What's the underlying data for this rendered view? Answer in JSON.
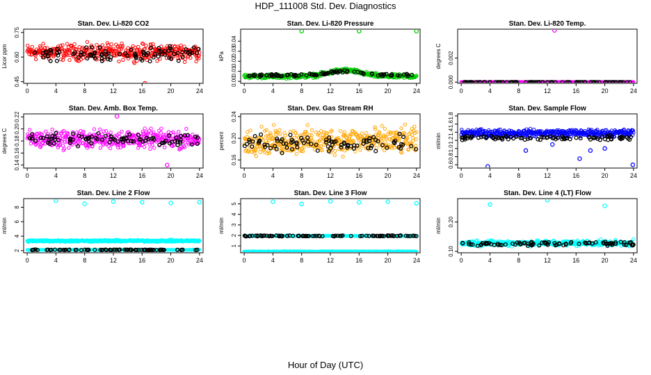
{
  "page": {
    "title": "HDP_111008  Std. Dev. Diagnostics",
    "x_label": "Hour of Day (UTC)"
  },
  "chart_data": [
    {
      "type": "scatter",
      "title": "Stan. Dev. Li-820 CO2",
      "ylabel": "Licor ppm",
      "xlim": [
        -0.5,
        24.5
      ],
      "ylim": [
        0.44,
        0.77
      ],
      "xticks": [
        "0",
        "4",
        "8",
        "12",
        "16",
        "20",
        "24"
      ],
      "yticks": [
        "0.45",
        "0.60",
        "0.75"
      ],
      "yticks_at": [
        0.45,
        0.6,
        0.75
      ],
      "series": [
        {
          "color": "#ff0000",
          "y_center": 0.63,
          "y_spread": 0.07,
          "outliers": [
            [
              16.4,
              0.44
            ]
          ]
        },
        {
          "color": "#000000",
          "y_center": 0.62,
          "y_spread": 0.06,
          "outliers": []
        }
      ]
    },
    {
      "type": "scatter",
      "title": "Stan. Dev. Li-820 Pressure",
      "ylabel": "kPa",
      "xlim": [
        -0.5,
        24.5
      ],
      "ylim": [
        -0.002,
        0.052
      ],
      "xticks": [
        "0",
        "4",
        "8",
        "12",
        "16",
        "20",
        "24"
      ],
      "yticks": [
        "0.00",
        "0.01",
        "0.02",
        "0.03",
        "0.04"
      ],
      "yticks_at": [
        0.0,
        0.01,
        0.02,
        0.03,
        0.04
      ],
      "series": [
        {
          "color": "#00cc00",
          "y_center": 0.005,
          "y_spread": 0.003,
          "hump": [
            14,
            2.2,
            0.006
          ],
          "outliers": [
            [
              8,
              0.05
            ],
            [
              16,
              0.05
            ],
            [
              24,
              0.05
            ]
          ]
        },
        {
          "color": "#000000",
          "y_center": 0.006,
          "y_spread": 0.002,
          "hump": [
            14,
            2.2,
            0.004
          ],
          "outliers": []
        }
      ]
    },
    {
      "type": "scatter",
      "title": "Stan. Dev. Li-820 Temp.",
      "ylabel": "degrees C",
      "xlim": [
        -0.5,
        24.5
      ],
      "ylim": [
        -0.0001,
        0.0044
      ],
      "xticks": [
        "0",
        "4",
        "8",
        "12",
        "16",
        "20",
        "24"
      ],
      "yticks": [
        "0.000",
        "0.002"
      ],
      "yticks_at": [
        0.0,
        0.002
      ],
      "series": [
        {
          "color": "#ff00ff",
          "y_center": 0.0,
          "y_spread": 0.0,
          "outliers": [
            [
              13,
              0.0043
            ]
          ]
        },
        {
          "color": "#000000",
          "y_center": 0.0,
          "y_spread": 0.0,
          "outliers": []
        }
      ]
    },
    {
      "type": "scatter",
      "title": "Stan. Dev. Amb. Box Temp.",
      "ylabel": "degrees C",
      "xlim": [
        -0.5,
        24.5
      ],
      "ylim": [
        0.135,
        0.225
      ],
      "xticks": [
        "0",
        "4",
        "8",
        "12",
        "16",
        "20",
        "24"
      ],
      "yticks": [
        "0.14",
        "0.16",
        "0.18",
        "0.20",
        "0.22"
      ],
      "yticks_at": [
        0.14,
        0.16,
        0.18,
        0.2,
        0.22
      ],
      "series": [
        {
          "color": "#ff00ff",
          "y_center": 0.183,
          "y_spread": 0.022,
          "outliers": [
            [
              12.5,
              0.221
            ],
            [
              19.5,
              0.14
            ]
          ]
        },
        {
          "color": "#000000",
          "y_center": 0.182,
          "y_spread": 0.015,
          "outliers": []
        }
      ]
    },
    {
      "type": "scatter",
      "title": "Stan. Dev. Gas Stream RH",
      "ylabel": "percent",
      "xlim": [
        -0.5,
        24.5
      ],
      "ylim": [
        0.145,
        0.245
      ],
      "xticks": [
        "0",
        "4",
        "8",
        "12",
        "16",
        "20",
        "24"
      ],
      "yticks": [
        "0.16",
        "0.20",
        "0.24"
      ],
      "yticks_at": [
        0.16,
        0.2,
        0.24
      ],
      "series": [
        {
          "color": "#ffa500",
          "y_center": 0.195,
          "y_spread": 0.035,
          "outliers": []
        },
        {
          "color": "#000000",
          "y_center": 0.19,
          "y_spread": 0.022,
          "outliers": []
        }
      ]
    },
    {
      "type": "scatter",
      "title": "Stan. Dev. Sample Flow",
      "ylabel": "ml/min",
      "xlim": [
        -0.5,
        24.5
      ],
      "ylim": [
        0.52,
        1.85
      ],
      "xticks": [
        "0",
        "4",
        "8",
        "12",
        "16",
        "20",
        "24"
      ],
      "yticks": [
        "0.6",
        "0.8",
        "1.0",
        "1.2",
        "1.4",
        "1.6",
        "1.8"
      ],
      "yticks_at": [
        0.6,
        0.8,
        1.0,
        1.2,
        1.4,
        1.6,
        1.8
      ],
      "series": [
        {
          "color": "#0000ff",
          "y_center": 1.38,
          "y_spread": 0.13,
          "outliers": [
            [
              3.7,
              0.56
            ],
            [
              9,
              0.95
            ],
            [
              12.7,
              1.1
            ],
            [
              16.5,
              0.75
            ],
            [
              18,
              0.95
            ],
            [
              20,
              1.0
            ],
            [
              23.9,
              0.6
            ]
          ]
        },
        {
          "color": "#000000",
          "y_center": 1.26,
          "y_spread": 0.08,
          "outliers": []
        }
      ]
    },
    {
      "type": "scatter",
      "title": "Stan. Dev. Line 2 Flow",
      "ylabel": "ml/min",
      "xlim": [
        -0.5,
        24.5
      ],
      "ylim": [
        1.7,
        9.2
      ],
      "xticks": [
        "0",
        "4",
        "8",
        "12",
        "16",
        "20",
        "24"
      ],
      "yticks": [
        "2",
        "4",
        "6",
        "8"
      ],
      "yticks_at": [
        2,
        4,
        6,
        8
      ],
      "series": [
        {
          "color": "#00ffff",
          "y_center": 3.35,
          "y_spread": 0.2,
          "extra_band": [
            2.1,
            0.05
          ],
          "outliers": [
            [
              4,
              8.9
            ],
            [
              8,
              8.5
            ],
            [
              12,
              8.8
            ],
            [
              16,
              8.7
            ],
            [
              20,
              8.6
            ],
            [
              24,
              8.7
            ]
          ]
        },
        {
          "color": "#000000",
          "y_center": 2.1,
          "y_spread": 0.06,
          "outliers": []
        }
      ]
    },
    {
      "type": "scatter",
      "title": "Stan. Dev. Line 3 Flow",
      "ylabel": "ml/min",
      "xlim": [
        -0.5,
        24.5
      ],
      "ylim": [
        0.35,
        5.5
      ],
      "xticks": [
        "0",
        "4",
        "8",
        "12",
        "16",
        "20",
        "24"
      ],
      "yticks": [
        "1",
        "2",
        "3",
        "4",
        "5"
      ],
      "yticks_at": [
        1,
        2,
        3,
        4,
        5
      ],
      "series": [
        {
          "color": "#00ffff",
          "y_center": 0.45,
          "y_spread": 0.06,
          "extra_band": [
            1.95,
            0.06
          ],
          "outliers": [
            [
              4,
              5.2
            ],
            [
              8,
              5.0
            ],
            [
              12,
              5.25
            ],
            [
              16,
              5.15
            ],
            [
              20,
              5.2
            ],
            [
              24,
              5.05
            ]
          ]
        },
        {
          "color": "#000000",
          "y_center": 1.95,
          "y_spread": 0.06,
          "outliers": []
        }
      ]
    },
    {
      "type": "scatter",
      "title": "Stan. Dev. Line 4 (LT) Flow",
      "ylabel": "ml/min",
      "xlim": [
        -0.5,
        24.5
      ],
      "ylim": [
        0.095,
        0.28
      ],
      "xticks": [
        "0",
        "4",
        "8",
        "12",
        "16",
        "20",
        "24"
      ],
      "yticks": [
        "0.10",
        "0.20"
      ],
      "yticks_at": [
        0.1,
        0.2
      ],
      "series": [
        {
          "color": "#00ffff",
          "y_center": 0.128,
          "y_spread": 0.014,
          "outliers": [
            [
              4,
              0.26
            ],
            [
              12,
              0.275
            ],
            [
              20,
              0.255
            ]
          ]
        },
        {
          "color": "#000000",
          "y_center": 0.126,
          "y_spread": 0.01,
          "outliers": []
        }
      ]
    }
  ]
}
